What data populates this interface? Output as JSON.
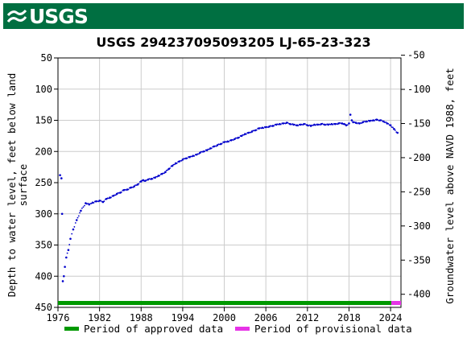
{
  "header": {
    "logo_text": "USGS",
    "brand_color": "#006f41"
  },
  "chart_data": {
    "type": "scatter",
    "title": "USGS 294237095093205 LJ-65-23-323",
    "xlabel": "",
    "ylabel": "Depth to water level, feet below land surface",
    "ylabel2": "Groundwater level above NAVD 1988, feet",
    "xlim": [
      1976,
      2025.5
    ],
    "ylim": [
      450,
      50
    ],
    "y2lim": [
      -419.2,
      -54.0
    ],
    "y_inverted": true,
    "grid": true,
    "x_ticks": [
      "1976",
      "1982",
      "1988",
      "1994",
      "2000",
      "2006",
      "2012",
      "2018",
      "2024"
    ],
    "y_ticks": [
      "50",
      "100",
      "150",
      "200",
      "250",
      "300",
      "350",
      "400",
      "450"
    ],
    "y2_ticks": [
      "-50",
      "-100",
      "-150",
      "-200",
      "-250",
      "-300",
      "-350",
      "-400"
    ],
    "series": [
      {
        "name": "",
        "color": "#0000cc",
        "x": [
          1976.3,
          1976.5,
          1976.6,
          1976.7,
          1976.85,
          1977.0,
          1977.2,
          1977.5,
          1977.8,
          1978.2,
          1978.7,
          1979.3,
          1980.0,
          1980.5,
          1981.0,
          1981.5,
          1982.0,
          1982.5,
          1983.0,
          1983.5,
          1984.0,
          1984.5,
          1985.0,
          1985.5,
          1986.0,
          1986.5,
          1987.0,
          1987.5,
          1988.0,
          1988.3,
          1988.6,
          1989.0,
          1989.5,
          1990.0,
          1990.5,
          1991.0,
          1991.5,
          1992.0,
          1992.5,
          1993.0,
          1993.5,
          1994.0,
          1994.5,
          1995.0,
          1995.5,
          1996.0,
          1996.5,
          1997.0,
          1997.5,
          1998.0,
          1998.5,
          1999.0,
          1999.5,
          2000.0,
          2000.5,
          2001.0,
          2001.5,
          2002.0,
          2002.5,
          2003.0,
          2003.5,
          2004.0,
          2004.5,
          2005.0,
          2005.5,
          2006.0,
          2006.5,
          2007.0,
          2007.5,
          2008.0,
          2008.5,
          2009.0,
          2009.5,
          2010.0,
          2010.5,
          2011.0,
          2011.5,
          2012.0,
          2012.5,
          2013.0,
          2013.5,
          2014.0,
          2014.5,
          2015.0,
          2015.5,
          2016.0,
          2016.5,
          2017.0,
          2017.3,
          2017.6,
          2018.0,
          2018.2,
          2018.4,
          2018.6,
          2019.0,
          2019.5,
          2020.0,
          2020.5,
          2021.0,
          2021.5,
          2022.0,
          2022.5,
          2023.0,
          2023.5,
          2024.0,
          2024.5,
          2025.0
        ],
        "y": [
          238,
          243,
          300,
          408,
          400,
          385,
          370,
          358,
          340,
          325,
          310,
          295,
          283,
          285,
          282,
          280,
          279,
          281,
          276,
          274,
          271,
          268,
          266,
          262,
          261,
          258,
          256,
          253,
          248,
          246,
          247,
          245,
          244,
          242,
          239,
          236,
          233,
          228,
          223,
          219,
          216,
          213,
          211,
          209,
          207,
          205,
          202,
          200,
          198,
          195,
          192,
          190,
          188,
          185,
          184,
          182,
          180,
          178,
          175,
          172,
          170,
          168,
          166,
          163,
          162,
          161,
          160,
          159,
          157,
          156,
          155,
          154,
          156,
          157,
          158,
          157,
          156,
          158,
          159,
          157,
          157,
          156,
          157,
          157,
          156,
          156,
          155,
          155,
          156,
          158,
          155,
          141,
          150,
          153,
          154,
          155,
          153,
          152,
          151,
          150,
          149,
          150,
          152,
          155,
          158,
          164,
          170
        ]
      }
    ],
    "periods": [
      {
        "name": "Period of approved data",
        "color": "#009900",
        "start": 1976,
        "end": 2024.1
      },
      {
        "name": "Period of provisional data",
        "color": "#e633e6",
        "start": 2024.1,
        "end": 2025.5
      }
    ]
  }
}
